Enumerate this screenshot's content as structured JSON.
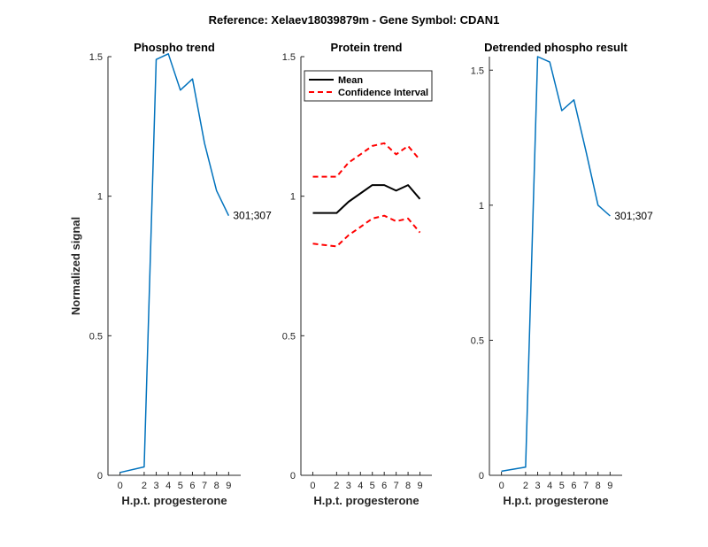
{
  "figure": {
    "title": "Reference:  Xelaev18039879m - Gene Symbol:  CDAN1"
  },
  "chart_data": [
    {
      "type": "line",
      "title": "Phospho trend",
      "xlabel": "H.p.t. progesterone",
      "ylabel": "Normalized signal",
      "xticks": [
        0,
        2,
        3,
        4,
        5,
        6,
        7,
        8,
        9
      ],
      "yticks": [
        0,
        0.5,
        1,
        1.5
      ],
      "ytick_labels": [
        "0",
        "0.5",
        "1",
        "1.5"
      ],
      "ylim": [
        0,
        1.5
      ],
      "grid": false,
      "series": [
        {
          "color": "#0072BD",
          "style": "solid",
          "x": [
            0,
            2,
            3,
            4,
            5,
            6,
            7,
            8,
            9
          ],
          "y": [
            0.01,
            0.03,
            1.49,
            1.51,
            1.38,
            1.42,
            1.19,
            1.02,
            0.93
          ]
        }
      ],
      "annotations": [
        {
          "text": "301;307",
          "x": 9,
          "y": 0.93
        }
      ]
    },
    {
      "type": "line",
      "title": "Protein trend",
      "xlabel": "H.p.t. progesterone",
      "ylabel": "",
      "xticks": [
        0,
        2,
        3,
        4,
        5,
        6,
        7,
        8,
        9
      ],
      "yticks": [
        0,
        0.5,
        1,
        1.5
      ],
      "ytick_labels": [
        "0",
        "0.5",
        "1",
        "1.5"
      ],
      "ylim": [
        0,
        1.5
      ],
      "grid": false,
      "legend": {
        "position": "top-left",
        "entries": [
          {
            "label": "Mean",
            "color": "#000000",
            "style": "solid"
          },
          {
            "label": "Confidence Interval",
            "color": "#FF0000",
            "style": "dashed"
          }
        ]
      },
      "series": [
        {
          "name": "Mean",
          "color": "#000000",
          "style": "solid",
          "x": [
            0,
            2,
            3,
            4,
            5,
            6,
            7,
            8,
            9
          ],
          "y": [
            0.94,
            0.94,
            0.98,
            1.01,
            1.04,
            1.04,
            1.02,
            1.04,
            0.99
          ]
        },
        {
          "name": "Confidence Interval",
          "color": "#FF0000",
          "style": "dashed",
          "x": [
            0,
            2,
            3,
            4,
            5,
            6,
            7,
            8,
            9
          ],
          "y": [
            1.07,
            1.07,
            1.12,
            1.15,
            1.18,
            1.19,
            1.15,
            1.18,
            1.13
          ]
        },
        {
          "name": "Confidence Interval",
          "color": "#FF0000",
          "style": "dashed",
          "x": [
            0,
            2,
            3,
            4,
            5,
            6,
            7,
            8,
            9
          ],
          "y": [
            0.83,
            0.82,
            0.86,
            0.89,
            0.92,
            0.93,
            0.91,
            0.92,
            0.87
          ]
        }
      ]
    },
    {
      "type": "line",
      "title": "Detrended phospho result",
      "xlabel": "H.p.t. progesterone",
      "ylabel": "",
      "xticks": [
        0,
        2,
        3,
        4,
        5,
        6,
        7,
        8,
        9
      ],
      "yticks": [
        0,
        0.5,
        1,
        1.5
      ],
      "ytick_labels": [
        "0",
        "0.5",
        "1",
        "1.5"
      ],
      "ylim": [
        0,
        1.55
      ],
      "grid": false,
      "series": [
        {
          "color": "#0072BD",
          "style": "solid",
          "x": [
            0,
            2,
            3,
            4,
            5,
            6,
            7,
            8,
            9
          ],
          "y": [
            0.015,
            0.03,
            1.55,
            1.53,
            1.35,
            1.39,
            1.2,
            1.0,
            0.96
          ]
        }
      ],
      "annotations": [
        {
          "text": "301;307",
          "x": 9,
          "y": 0.96
        }
      ]
    }
  ]
}
